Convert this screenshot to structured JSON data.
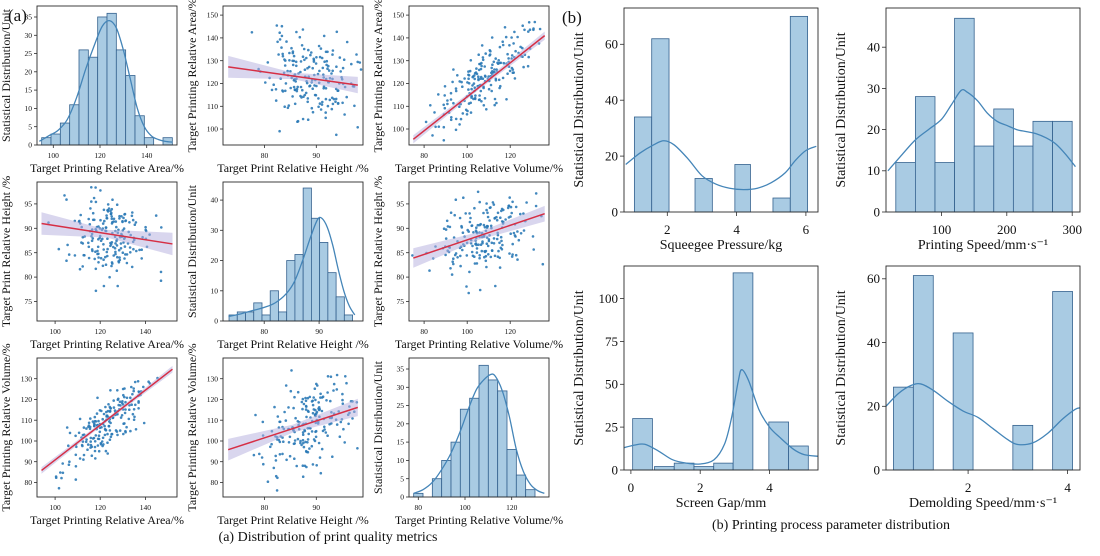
{
  "figure": {
    "panel_a_letter": "(a)",
    "panel_b_letter": "(b)",
    "caption_a": "(a) Distribution of print quality metrics",
    "caption_b": "(b) Printing process parameter distribution"
  },
  "colors": {
    "bar_fill": "#a9cbe3",
    "bar_edge": "#34618e",
    "kde_line": "#4485b8",
    "scatter_dot": "#2878b5",
    "regression_line": "#d62f45",
    "confidence_band": "#b3aede",
    "spine": "#2b2b2b",
    "text": "#111111"
  },
  "chart_data": [
    {
      "id": "a-r1c1",
      "panel": "a",
      "type": "histogram-kde",
      "xlabel": "Target Printing Relative Area/%",
      "ylabel": "Statistical Distribution/Unit",
      "xlim": [
        93,
        153
      ],
      "ylim": [
        0,
        38
      ],
      "xticks": [
        100,
        120,
        140
      ],
      "yticks": [
        0,
        5,
        10,
        15,
        20,
        25,
        30,
        35
      ],
      "bars": [
        [
          95,
          99,
          2
        ],
        [
          99,
          103,
          3
        ],
        [
          103,
          107,
          6
        ],
        [
          107,
          111,
          11
        ],
        [
          111,
          115,
          26
        ],
        [
          115,
          119,
          24
        ],
        [
          119,
          123,
          35
        ],
        [
          123,
          127,
          36
        ],
        [
          127,
          131,
          26
        ],
        [
          131,
          135,
          19
        ],
        [
          135,
          139,
          8
        ],
        [
          139,
          143,
          2
        ],
        [
          147,
          151,
          2
        ]
      ],
      "kde": [
        [
          94,
          1
        ],
        [
          98,
          2.5
        ],
        [
          102,
          4
        ],
        [
          106,
          7
        ],
        [
          110,
          13
        ],
        [
          114,
          21
        ],
        [
          118,
          28
        ],
        [
          121,
          32.5
        ],
        [
          124,
          34
        ],
        [
          127,
          32
        ],
        [
          130,
          26
        ],
        [
          133,
          18
        ],
        [
          136,
          10
        ],
        [
          139,
          5
        ],
        [
          142,
          2.5
        ],
        [
          145,
          1.5
        ],
        [
          148,
          1
        ],
        [
          151,
          0.8
        ]
      ]
    },
    {
      "id": "a-r1c2",
      "panel": "a",
      "type": "scatter-regression",
      "xlabel": "Target Print Relative Height /%",
      "ylabel": "Target Printing Relative Area/%",
      "xlim": [
        72,
        99
      ],
      "ylim": [
        93,
        154
      ],
      "xticks": [
        80,
        90
      ],
      "yticks": [
        100,
        110,
        120,
        130,
        140,
        150
      ],
      "points": {
        "n": 200,
        "seed": 11,
        "x_mean": 88.8,
        "x_sd": 4.2,
        "y_mean": 122.5,
        "y_sd": 9.2,
        "r": -0.18
      },
      "reg": {
        "line": [
          [
            73,
            127.3
          ],
          [
            98,
            119.3
          ]
        ],
        "band": [
          4.8,
          1.4,
          3.6
        ]
      }
    },
    {
      "id": "a-r1c3",
      "panel": "a",
      "type": "scatter-regression",
      "xlabel": "Target Printing Relative Volume/%",
      "ylabel": "Target Printing Relative Area/%",
      "xlim": [
        73,
        138
      ],
      "ylim": [
        93,
        154
      ],
      "xticks": [
        80,
        100,
        120
      ],
      "yticks": [
        100,
        110,
        120,
        130,
        140,
        150
      ],
      "points": {
        "n": 200,
        "seed": 12,
        "x_mean": 108,
        "x_sd": 11,
        "y_mean": 122.5,
        "y_sd": 10.5,
        "r": 0.8
      },
      "reg": {
        "line": [
          [
            75,
            95.5
          ],
          [
            136,
            141
          ]
        ],
        "band": [
          1.8,
          0.9,
          1.8
        ]
      }
    },
    {
      "id": "a-r2c1",
      "panel": "a",
      "type": "scatter-regression",
      "xlabel": "Target Printing Relative Area/%",
      "ylabel": "Target Print Relative Height /%",
      "xlim": [
        92,
        154
      ],
      "ylim": [
        71,
        99.5
      ],
      "xticks": [
        100,
        120,
        140
      ],
      "yticks": [
        75,
        80,
        85,
        90,
        95
      ],
      "points": {
        "n": 200,
        "seed": 13,
        "x_mean": 122.5,
        "x_sd": 9.5,
        "y_mean": 88.6,
        "y_sd": 4.3,
        "r": -0.17
      },
      "reg": {
        "line": [
          [
            94,
            91
          ],
          [
            152,
            86.8
          ]
        ],
        "band": [
          2.3,
          0.8,
          2.3
        ]
      }
    },
    {
      "id": "a-r2c2",
      "panel": "a",
      "type": "histogram-kde",
      "xlabel": "Target Print Relative Height /%",
      "ylabel": "Statistical Distribution/Unit",
      "xlim": [
        72.5,
        98
      ],
      "ylim": [
        0,
        46
      ],
      "xticks": [
        80,
        90
      ],
      "yticks": [
        0,
        10,
        20,
        30,
        40
      ],
      "bars": [
        [
          73.6,
          75.1,
          2
        ],
        [
          75.1,
          76.6,
          3
        ],
        [
          76.6,
          78.1,
          3
        ],
        [
          78.1,
          79.6,
          6
        ],
        [
          79.6,
          81.1,
          2
        ],
        [
          81.1,
          82.6,
          10
        ],
        [
          82.6,
          84.1,
          3
        ],
        [
          84.1,
          85.6,
          20
        ],
        [
          85.6,
          87.1,
          22
        ],
        [
          87.1,
          88.6,
          44
        ],
        [
          88.6,
          90.1,
          34
        ],
        [
          90.1,
          91.6,
          26
        ],
        [
          91.6,
          93.1,
          16
        ],
        [
          93.1,
          94.6,
          8
        ],
        [
          94.6,
          96.1,
          2
        ]
      ],
      "kde": [
        [
          73.5,
          1.5
        ],
        [
          76,
          2.5
        ],
        [
          78,
          3.5
        ],
        [
          80,
          4.5
        ],
        [
          82,
          6
        ],
        [
          84,
          9
        ],
        [
          85.5,
          13
        ],
        [
          87,
          20
        ],
        [
          88.5,
          28
        ],
        [
          89.7,
          33.5
        ],
        [
          90.5,
          34
        ],
        [
          91.5,
          31
        ],
        [
          92.5,
          25
        ],
        [
          93.5,
          17
        ],
        [
          94.5,
          10
        ],
        [
          95.5,
          5
        ],
        [
          96.5,
          2
        ]
      ]
    },
    {
      "id": "a-r2c3",
      "panel": "a",
      "type": "scatter-regression",
      "xlabel": "Target Printing Relative Volume/%",
      "ylabel": "Target Print Relative Height /%",
      "xlim": [
        73,
        138
      ],
      "ylim": [
        71,
        99.5
      ],
      "xticks": [
        80,
        100,
        120
      ],
      "yticks": [
        75,
        80,
        85,
        90,
        95
      ],
      "points": {
        "n": 200,
        "seed": 14,
        "x_mean": 108,
        "x_sd": 11,
        "y_mean": 88.6,
        "y_sd": 4.3,
        "r": 0.35
      },
      "reg": {
        "line": [
          [
            75,
            83.9
          ],
          [
            136,
            93
          ]
        ],
        "band": [
          2.0,
          0.8,
          1.6
        ]
      }
    },
    {
      "id": "a-r3c1",
      "panel": "a",
      "type": "scatter-regression",
      "xlabel": "Target Printing Relative Area/%",
      "ylabel": "Target Printing Relative Volume/%",
      "xlim": [
        92,
        154
      ],
      "ylim": [
        73,
        140
      ],
      "xticks": [
        100,
        120,
        140
      ],
      "yticks": [
        80,
        90,
        100,
        110,
        120,
        130
      ],
      "points": {
        "n": 200,
        "seed": 15,
        "x_mean": 122.5,
        "x_sd": 9.5,
        "y_mean": 108.5,
        "y_sd": 11,
        "r": 0.8
      },
      "reg": {
        "line": [
          [
            94,
            85.8
          ],
          [
            152,
            134.6
          ]
        ],
        "band": [
          1.6,
          0.8,
          1.6
        ]
      }
    },
    {
      "id": "a-r3c2",
      "panel": "a",
      "type": "scatter-regression",
      "xlabel": "Target Print Relative Height /%",
      "ylabel": "Target Printing Relative Volume/%",
      "xlim": [
        72,
        99
      ],
      "ylim": [
        73,
        140
      ],
      "xticks": [
        80,
        90
      ],
      "yticks": [
        80,
        90,
        100,
        110,
        120,
        130
      ],
      "points": {
        "n": 200,
        "seed": 16,
        "x_mean": 88.8,
        "x_sd": 4.2,
        "y_mean": 108.5,
        "y_sd": 11,
        "r": 0.35
      },
      "reg": {
        "line": [
          [
            73,
            95.8
          ],
          [
            98,
            116.2
          ]
        ],
        "band": [
          5.2,
          1.9,
          4.2
        ]
      }
    },
    {
      "id": "a-r3c3",
      "panel": "a",
      "type": "histogram-kde",
      "xlabel": "Target Printing Relative Volume/%",
      "ylabel": "Statistical Distribution/Unit",
      "xlim": [
        76,
        136
      ],
      "ylim": [
        0,
        38
      ],
      "xticks": [
        80,
        100,
        120
      ],
      "yticks": [
        0,
        5,
        10,
        15,
        20,
        25,
        30,
        35
      ],
      "bars": [
        [
          78,
          82,
          1
        ],
        [
          86,
          90,
          5
        ],
        [
          90,
          94,
          10
        ],
        [
          94,
          98,
          15
        ],
        [
          98,
          102,
          24
        ],
        [
          102,
          106,
          27
        ],
        [
          106,
          110,
          36
        ],
        [
          110,
          114,
          32
        ],
        [
          114,
          118,
          29
        ],
        [
          118,
          122,
          13
        ],
        [
          122,
          126,
          6
        ],
        [
          126,
          130,
          2
        ]
      ],
      "kde": [
        [
          78,
          1
        ],
        [
          82,
          2
        ],
        [
          86,
          4
        ],
        [
          90,
          7.5
        ],
        [
          94,
          12
        ],
        [
          98,
          18
        ],
        [
          102,
          25
        ],
        [
          105,
          29.5
        ],
        [
          108,
          32
        ],
        [
          111,
          33.5
        ],
        [
          113,
          33
        ],
        [
          116,
          29
        ],
        [
          119,
          22
        ],
        [
          122,
          13
        ],
        [
          125,
          7
        ],
        [
          128,
          3.5
        ],
        [
          131,
          1.8
        ],
        [
          134,
          1
        ]
      ]
    },
    {
      "id": "b-r1c1",
      "panel": "b",
      "type": "histogram-kde",
      "xlabel": "Squeegee Pressure/kg",
      "ylabel": "Statistical Distribution/Unit",
      "xlim": [
        0.75,
        6.35
      ],
      "ylim": [
        0,
        73
      ],
      "xticks": [
        2,
        4,
        6
      ],
      "yticks": [
        0,
        20,
        40,
        60
      ],
      "bars": [
        [
          1.05,
          1.55,
          34
        ],
        [
          1.55,
          2.05,
          62
        ],
        [
          2.8,
          3.3,
          12
        ],
        [
          3.95,
          4.4,
          17
        ],
        [
          5.05,
          5.55,
          5
        ],
        [
          5.55,
          6.05,
          70
        ]
      ],
      "kde": [
        [
          0.8,
          17
        ],
        [
          1.2,
          21
        ],
        [
          1.6,
          24
        ],
        [
          1.9,
          25.5
        ],
        [
          2.2,
          24
        ],
        [
          2.6,
          19
        ],
        [
          3.0,
          13
        ],
        [
          3.4,
          10
        ],
        [
          3.8,
          8.5
        ],
        [
          4.2,
          8
        ],
        [
          4.6,
          8.5
        ],
        [
          5.0,
          10.5
        ],
        [
          5.4,
          14
        ],
        [
          5.7,
          18.5
        ],
        [
          6.0,
          22
        ],
        [
          6.3,
          23.5
        ]
      ]
    },
    {
      "id": "b-r1c2",
      "panel": "b",
      "type": "histogram-kde",
      "xlabel": "Printing Speed/mm·s⁻¹",
      "ylabel": "Statistical Distribution/Unit",
      "xlim": [
        15,
        312
      ],
      "ylim": [
        0,
        49.5
      ],
      "xticks": [
        100,
        200,
        300
      ],
      "yticks": [
        0,
        10,
        20,
        30,
        40
      ],
      "bars": [
        [
          30,
          60,
          12
        ],
        [
          60,
          90,
          28
        ],
        [
          90,
          120,
          12
        ],
        [
          120,
          150,
          47
        ],
        [
          150,
          180,
          16
        ],
        [
          180,
          210,
          25
        ],
        [
          210,
          240,
          16
        ],
        [
          240,
          270,
          22
        ],
        [
          270,
          300,
          22
        ]
      ],
      "kde": [
        [
          18,
          10
        ],
        [
          40,
          14
        ],
        [
          60,
          17.5
        ],
        [
          80,
          20
        ],
        [
          100,
          22.5
        ],
        [
          115,
          26
        ],
        [
          130,
          29.5
        ],
        [
          140,
          29
        ],
        [
          155,
          27
        ],
        [
          170,
          24
        ],
        [
          185,
          22
        ],
        [
          200,
          21
        ],
        [
          215,
          20
        ],
        [
          230,
          19.5
        ],
        [
          245,
          19
        ],
        [
          260,
          18
        ],
        [
          275,
          16.5
        ],
        [
          290,
          14
        ],
        [
          305,
          11
        ]
      ]
    },
    {
      "id": "b-r2c1",
      "panel": "b",
      "type": "histogram-kde",
      "xlabel": "Screen Gap/mm",
      "ylabel": "Statistical Distribution/Unit",
      "xlim": [
        -0.2,
        5.4
      ],
      "ylim": [
        0,
        119
      ],
      "xticks": [
        0,
        2,
        4
      ],
      "yticks": [
        0,
        25,
        50,
        75,
        100
      ],
      "bars": [
        [
          0.05,
          0.62,
          30
        ],
        [
          0.68,
          1.25,
          2
        ],
        [
          1.25,
          1.82,
          4
        ],
        [
          1.82,
          2.39,
          2
        ],
        [
          2.39,
          2.95,
          4
        ],
        [
          2.95,
          3.52,
          115
        ],
        [
          3.98,
          4.55,
          28
        ],
        [
          4.55,
          5.12,
          14
        ]
      ],
      "kde": [
        [
          -0.2,
          13
        ],
        [
          0.1,
          14.5
        ],
        [
          0.4,
          15
        ],
        [
          0.8,
          11
        ],
        [
          1.2,
          6
        ],
        [
          1.6,
          4
        ],
        [
          2.0,
          3.5
        ],
        [
          2.4,
          6
        ],
        [
          2.7,
          15
        ],
        [
          2.9,
          30
        ],
        [
          3.1,
          52
        ],
        [
          3.2,
          58.5
        ],
        [
          3.4,
          52
        ],
        [
          3.7,
          35
        ],
        [
          4.0,
          25
        ],
        [
          4.3,
          19
        ],
        [
          4.7,
          12
        ],
        [
          5.0,
          9
        ],
        [
          5.4,
          8
        ]
      ]
    },
    {
      "id": "b-r2c2",
      "panel": "b",
      "type": "histogram-kde",
      "xlabel": "Demolding Speed/mm·s⁻¹",
      "ylabel": "Statistical Distribution/Unit",
      "xlim": [
        0.35,
        4.25
      ],
      "ylim": [
        0,
        64
      ],
      "xticks": [
        2,
        4
      ],
      "yticks": [
        0,
        20,
        40,
        60
      ],
      "bars": [
        [
          0.5,
          0.9,
          26
        ],
        [
          0.9,
          1.3,
          61
        ],
        [
          1.7,
          2.1,
          43
        ],
        [
          2.9,
          3.3,
          14
        ],
        [
          3.7,
          4.1,
          56
        ]
      ],
      "kde": [
        [
          0.35,
          20
        ],
        [
          0.6,
          24
        ],
        [
          0.85,
          26.5
        ],
        [
          1.05,
          27
        ],
        [
          1.3,
          25
        ],
        [
          1.6,
          21.5
        ],
        [
          1.9,
          18.5
        ],
        [
          2.2,
          16.5
        ],
        [
          2.5,
          13
        ],
        [
          2.8,
          9.5
        ],
        [
          3.0,
          8
        ],
        [
          3.3,
          8.5
        ],
        [
          3.6,
          11.5
        ],
        [
          3.9,
          16
        ],
        [
          4.15,
          19
        ],
        [
          4.25,
          19.5
        ]
      ]
    }
  ]
}
